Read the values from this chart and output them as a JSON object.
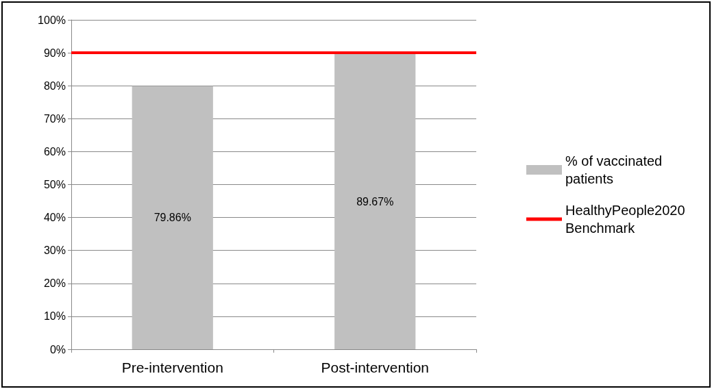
{
  "chart_data": {
    "type": "bar",
    "categories": [
      "Pre-intervention",
      "Post-intervention"
    ],
    "series": [
      {
        "name": "% of vaccinated patients",
        "color": "#c0c0c0",
        "values": [
          79.86,
          89.67
        ],
        "value_labels": [
          "79.86%",
          "89.67%"
        ]
      }
    ],
    "ylim": [
      0,
      100
    ],
    "yticks": [
      {
        "value": 0,
        "label": "0%"
      },
      {
        "value": 10,
        "label": "10%"
      },
      {
        "value": 20,
        "label": "20%"
      },
      {
        "value": 30,
        "label": "30%"
      },
      {
        "value": 40,
        "label": "40%"
      },
      {
        "value": 50,
        "label": "50%"
      },
      {
        "value": 60,
        "label": "60%"
      },
      {
        "value": 70,
        "label": "70%"
      },
      {
        "value": 80,
        "label": "80%"
      },
      {
        "value": 90,
        "label": "90%"
      },
      {
        "value": 100,
        "label": "100%"
      }
    ],
    "ref_lines": [
      {
        "axis": "y",
        "value": 90,
        "label": "HealthyPeople2020 Benchmark",
        "color": "#ff0000",
        "line_style": "solid"
      }
    ],
    "grid": "y",
    "legend": "right"
  }
}
